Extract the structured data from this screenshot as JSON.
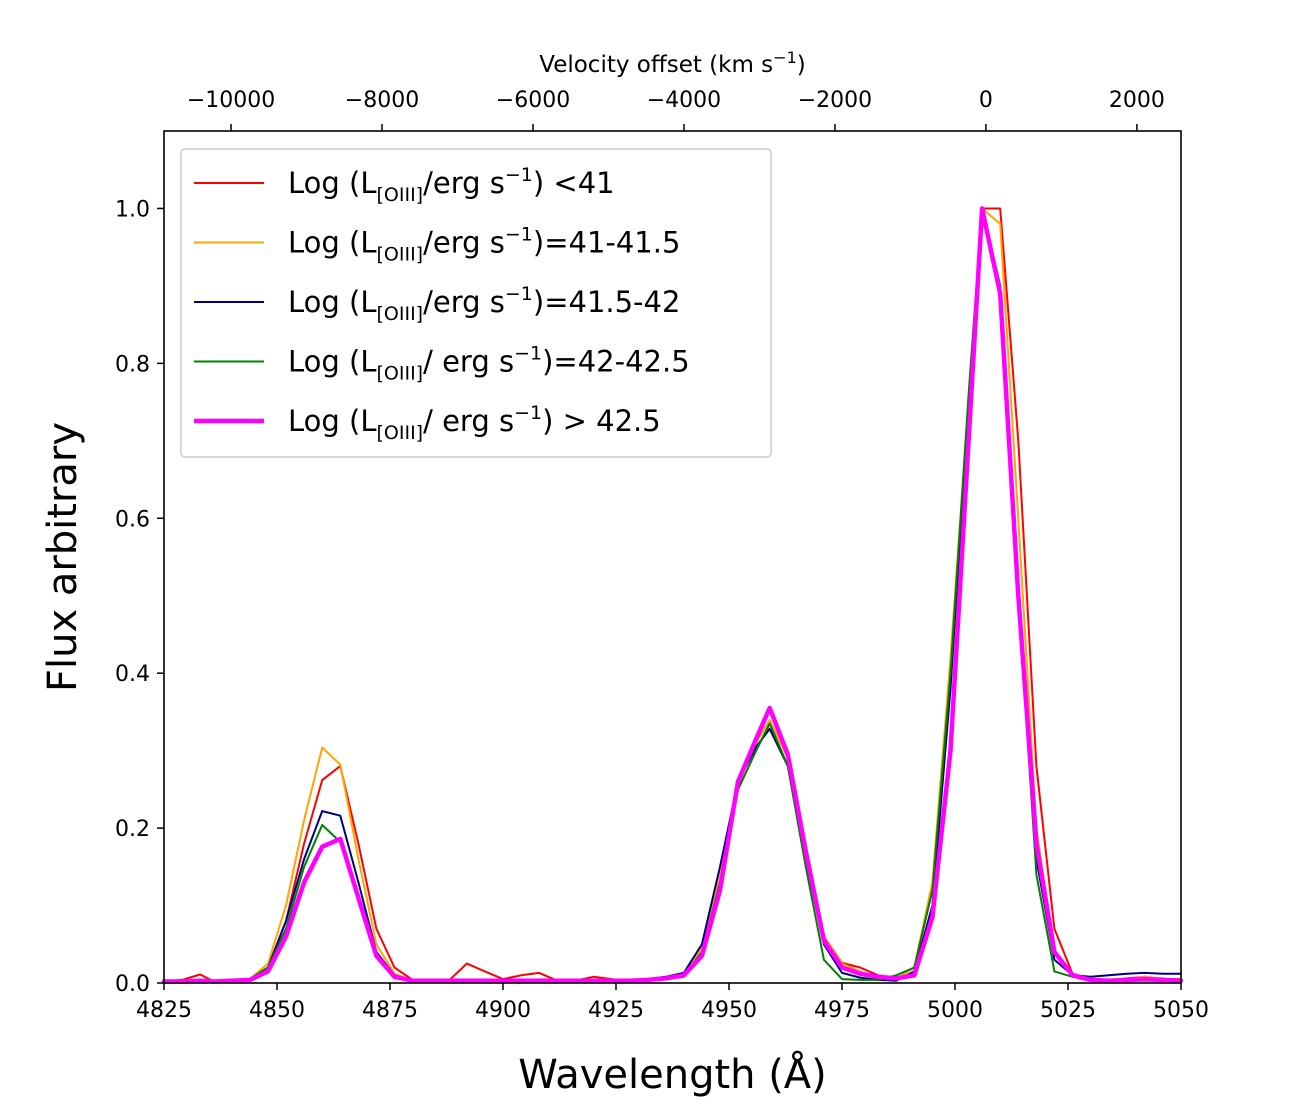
{
  "chart_data": {
    "type": "line",
    "title": "",
    "xlabel": "Wavelength (Å)",
    "ylabel": "Flux arbitrary",
    "top_xlabel_main": "Velocity offset (km s",
    "top_xlabel_sup": "−1",
    "top_xlabel_end": ")",
    "xlim": [
      4825,
      5050
    ],
    "ylim": [
      0,
      1.1
    ],
    "x_ticks": [
      4825,
      4850,
      4875,
      4900,
      4925,
      4950,
      4975,
      5000,
      5025,
      5050
    ],
    "x_tick_labels": [
      "4825",
      "4850",
      "4875",
      "4900",
      "4925",
      "4950",
      "4975",
      "5000",
      "5025",
      "5050"
    ],
    "y_ticks": [
      0.0,
      0.2,
      0.4,
      0.6,
      0.8,
      1.0
    ],
    "y_tick_labels": [
      "0.0",
      "0.2",
      "0.4",
      "0.6",
      "0.8",
      "1.0"
    ],
    "top_x_ref_wavelength": 5006.84,
    "top_x_ticks": [
      -10000,
      -8000,
      -6000,
      -4000,
      -2000,
      0,
      2000
    ],
    "top_x_tick_labels": [
      "−10000",
      "−8000",
      "−6000",
      "−4000",
      "−2000",
      "0",
      "2000"
    ],
    "grid": false,
    "legend_position": "top-left",
    "x": [
      4825,
      4829,
      4833,
      4836,
      4840,
      4844,
      4848,
      4852,
      4856,
      4860,
      4864,
      4868,
      4872,
      4876,
      4880,
      4884,
      4888,
      4892,
      4896,
      4900,
      4904,
      4908,
      4912,
      4916,
      4920,
      4924,
      4928,
      4932,
      4936,
      4940,
      4944,
      4948,
      4952,
      4956,
      4959,
      4963,
      4967,
      4971,
      4975,
      4979,
      4983,
      4987,
      4991,
      4995,
      4999,
      5003,
      5006,
      5010,
      5014,
      5018,
      5022,
      5026,
      5030,
      5034,
      5038,
      5042,
      5046,
      5050
    ],
    "series": [
      {
        "name_pre": "Log (L",
        "name_sub": "[OIII]",
        "name_post": "/erg s",
        "name_sup": "−1",
        "name_end": ") <41",
        "color": "#ff0000",
        "width": 2,
        "values": [
          0.002,
          0.004,
          0.011,
          0.002,
          0.003,
          0.005,
          0.02,
          0.08,
          0.18,
          0.262,
          0.28,
          0.18,
          0.07,
          0.02,
          0.004,
          0.003,
          0.003,
          0.025,
          0.015,
          0.005,
          0.01,
          0.013,
          0.003,
          0.003,
          0.008,
          0.005,
          0.002,
          0.003,
          0.005,
          0.008,
          0.04,
          0.13,
          0.25,
          0.3,
          0.335,
          0.28,
          0.17,
          0.06,
          0.026,
          0.02,
          0.01,
          0.005,
          0.02,
          0.12,
          0.4,
          0.75,
          1.0,
          1.0,
          0.7,
          0.28,
          0.07,
          0.012,
          0.005,
          0.003,
          0.006,
          0.008,
          0.005,
          0.005
        ]
      },
      {
        "name_pre": "Log (L",
        "name_sub": "[OIII]",
        "name_post": "/erg s",
        "name_sup": "−1",
        "name_end": ")=41-41.5",
        "color": "#ffa500",
        "width": 2,
        "values": [
          0.002,
          0.002,
          0.003,
          0.002,
          0.003,
          0.005,
          0.025,
          0.1,
          0.21,
          0.304,
          0.282,
          0.16,
          0.05,
          0.012,
          0.003,
          0.003,
          0.002,
          0.003,
          0.003,
          0.003,
          0.003,
          0.003,
          0.003,
          0.003,
          0.003,
          0.003,
          0.003,
          0.004,
          0.006,
          0.01,
          0.045,
          0.14,
          0.26,
          0.31,
          0.34,
          0.29,
          0.17,
          0.06,
          0.025,
          0.015,
          0.006,
          0.005,
          0.02,
          0.13,
          0.42,
          0.75,
          1.0,
          0.98,
          0.6,
          0.2,
          0.04,
          0.01,
          0.005,
          0.003,
          0.005,
          0.008,
          0.006,
          0.004
        ]
      },
      {
        "name_pre": "Log (L",
        "name_sub": "[OIII]",
        "name_post": "/erg s",
        "name_sup": "−1",
        "name_end": ")=41.5-42",
        "color": "#000080",
        "width": 2,
        "values": [
          0.002,
          0.002,
          0.003,
          0.002,
          0.003,
          0.005,
          0.02,
          0.08,
          0.16,
          0.222,
          0.216,
          0.13,
          0.04,
          0.01,
          0.003,
          0.003,
          0.003,
          0.003,
          0.003,
          0.003,
          0.003,
          0.003,
          0.003,
          0.003,
          0.003,
          0.003,
          0.003,
          0.005,
          0.008,
          0.013,
          0.05,
          0.15,
          0.26,
          0.305,
          0.328,
          0.28,
          0.16,
          0.05,
          0.013,
          0.007,
          0.004,
          0.003,
          0.015,
          0.1,
          0.38,
          0.75,
          1.0,
          0.9,
          0.52,
          0.16,
          0.03,
          0.01,
          0.008,
          0.01,
          0.012,
          0.013,
          0.012,
          0.012
        ]
      },
      {
        "name_pre": "Log (L",
        "name_sub": "[OIII]",
        "name_post": "/ erg s",
        "name_sup": "−1",
        "name_end": ")=42-42.5",
        "color": "#008000",
        "width": 2,
        "values": [
          0.002,
          0.002,
          0.003,
          0.002,
          0.003,
          0.005,
          0.02,
          0.07,
          0.15,
          0.204,
          0.182,
          0.11,
          0.035,
          0.008,
          0.003,
          0.003,
          0.003,
          0.003,
          0.003,
          0.003,
          0.003,
          0.003,
          0.003,
          0.003,
          0.003,
          0.003,
          0.003,
          0.004,
          0.006,
          0.01,
          0.04,
          0.13,
          0.25,
          0.3,
          0.335,
          0.28,
          0.15,
          0.03,
          0.005,
          0.004,
          0.004,
          0.01,
          0.02,
          0.12,
          0.4,
          0.76,
          1.0,
          0.9,
          0.5,
          0.14,
          0.015,
          0.008,
          0.004,
          0.003,
          0.003,
          0.003,
          0.003,
          0.003
        ]
      },
      {
        "name_pre": "Log (L",
        "name_sub": "[OIII]",
        "name_post": "/ erg s",
        "name_sup": "−1",
        "name_end": ") > 42.5",
        "color": "#ff00ff",
        "width": 4.5,
        "values": [
          0.002,
          0.002,
          0.003,
          0.002,
          0.003,
          0.004,
          0.015,
          0.06,
          0.13,
          0.176,
          0.186,
          0.11,
          0.035,
          0.008,
          0.003,
          0.003,
          0.003,
          0.003,
          0.003,
          0.003,
          0.003,
          0.003,
          0.003,
          0.003,
          0.003,
          0.003,
          0.003,
          0.004,
          0.006,
          0.01,
          0.035,
          0.12,
          0.26,
          0.315,
          0.355,
          0.295,
          0.17,
          0.055,
          0.02,
          0.012,
          0.008,
          0.006,
          0.01,
          0.085,
          0.3,
          0.7,
          1.0,
          0.89,
          0.5,
          0.18,
          0.04,
          0.01,
          0.004,
          0.003,
          0.004,
          0.005,
          0.004,
          0.003
        ]
      }
    ]
  }
}
